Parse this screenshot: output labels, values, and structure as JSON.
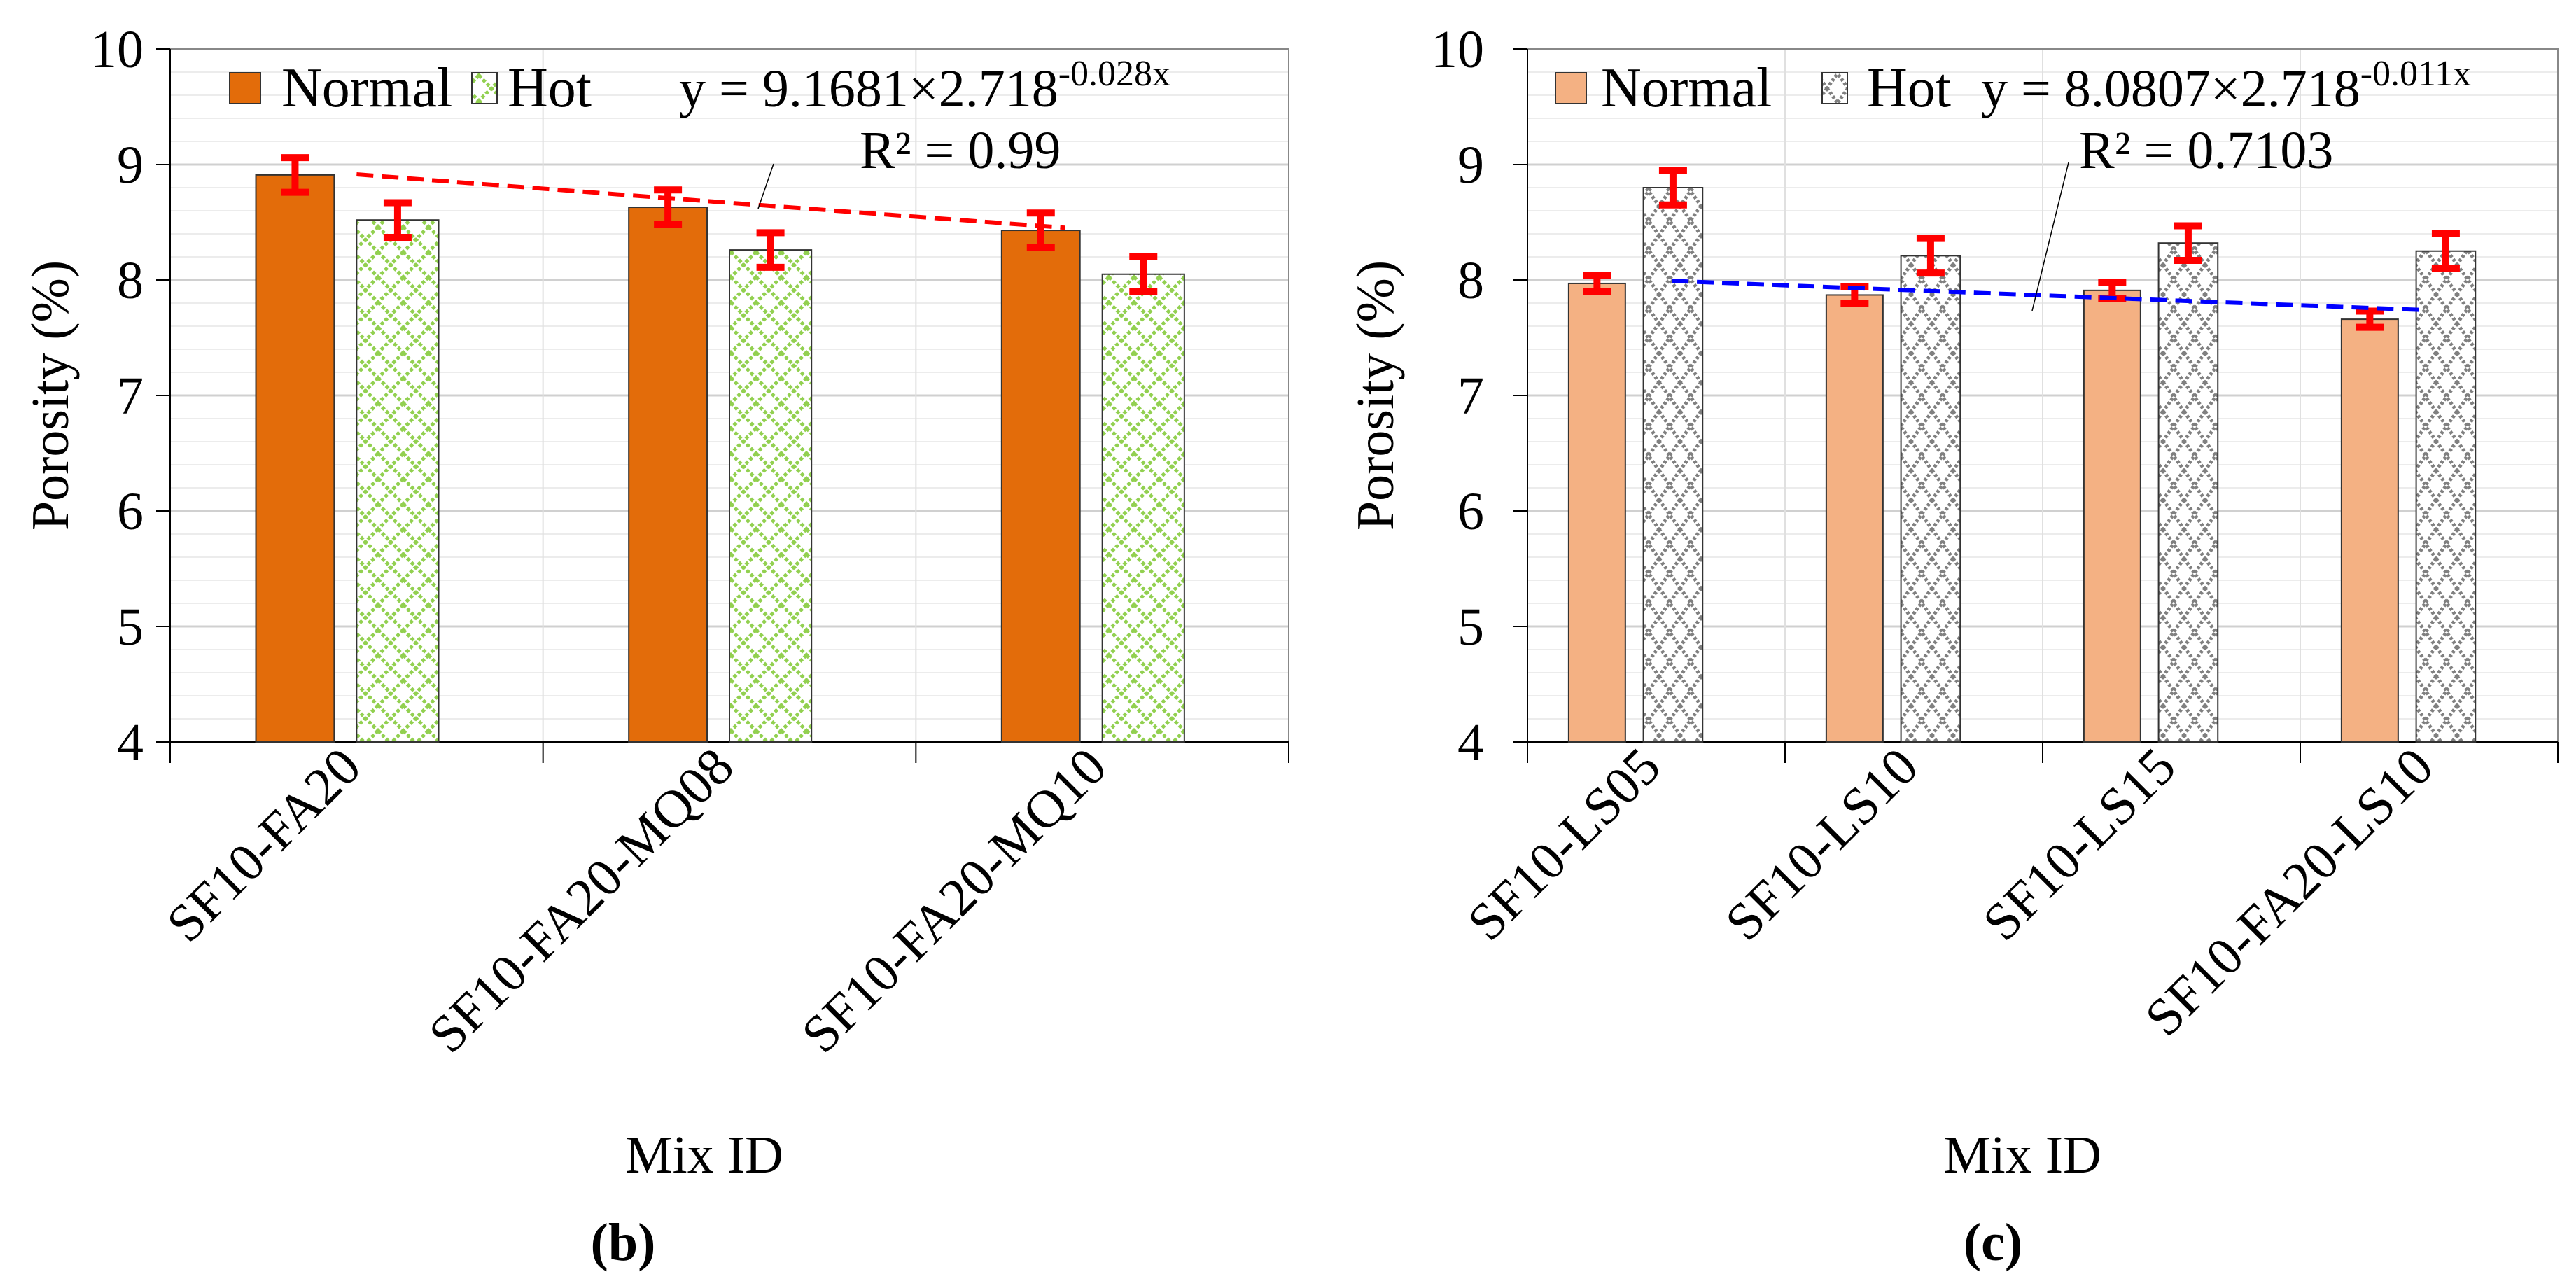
{
  "chart_data": [
    {
      "type": "bar",
      "panel_label": "(b)",
      "xlabel": "Mix ID",
      "ylabel": "Porosity (%)",
      "ylim": [
        4,
        10
      ],
      "yticks": [
        "4",
        "5",
        "6",
        "7",
        "8",
        "9",
        "10"
      ],
      "grid": true,
      "legend_position": "top-left",
      "categories": [
        "SF10-FA20",
        "SF10-FA20-MQ08",
        "SF10-FA20-MQ10"
      ],
      "series": [
        {
          "name": "Normal",
          "values": [
            8.91,
            8.63,
            8.43
          ],
          "errors": [
            0.15,
            0.15,
            0.15
          ],
          "color": "#e36c0a",
          "pattern": "solid"
        },
        {
          "name": "Hot",
          "values": [
            8.52,
            8.26,
            8.05
          ],
          "errors": [
            0.15,
            0.15,
            0.15
          ],
          "color": "#92d050",
          "pattern": "crosshatch"
        }
      ],
      "trendline": {
        "series": "Normal",
        "type": "exponential",
        "a": 9.1681,
        "b": -0.028,
        "color": "#ff0000",
        "equation_main": "y = 9.1681×2.718",
        "equation_exp": "-0.028x",
        "r2": "R² = 0.99"
      },
      "error_bar_color": "#ff0000"
    },
    {
      "type": "bar",
      "panel_label": "(c)",
      "xlabel": "Mix ID",
      "ylabel": "Porosity (%)",
      "ylim": [
        4,
        10
      ],
      "yticks": [
        "4",
        "5",
        "6",
        "7",
        "8",
        "9",
        "10"
      ],
      "grid": true,
      "legend_position": "top-left",
      "categories": [
        "SF10-LS05",
        "SF10-LS10",
        "SF10-LS15",
        "SF10-FA20-LS10"
      ],
      "series": [
        {
          "name": "Normal",
          "values": [
            7.97,
            7.87,
            7.91,
            7.66
          ],
          "errors": [
            0.07,
            0.07,
            0.07,
            0.07
          ],
          "color": "#f4b183",
          "pattern": "solid"
        },
        {
          "name": "Hot",
          "values": [
            8.8,
            8.21,
            8.32,
            8.25
          ],
          "errors": [
            0.15,
            0.15,
            0.15,
            0.15
          ],
          "color": "#808080",
          "pattern": "diamond"
        }
      ],
      "trendline": {
        "series": "Normal",
        "type": "exponential",
        "a": 8.0807,
        "b": -0.011,
        "color": "#0000ff",
        "equation_main": "y = 8.0807×2.718",
        "equation_exp": "-0.011x",
        "r2": "R² = 0.7103"
      },
      "error_bar_color": "#ff0000"
    }
  ]
}
